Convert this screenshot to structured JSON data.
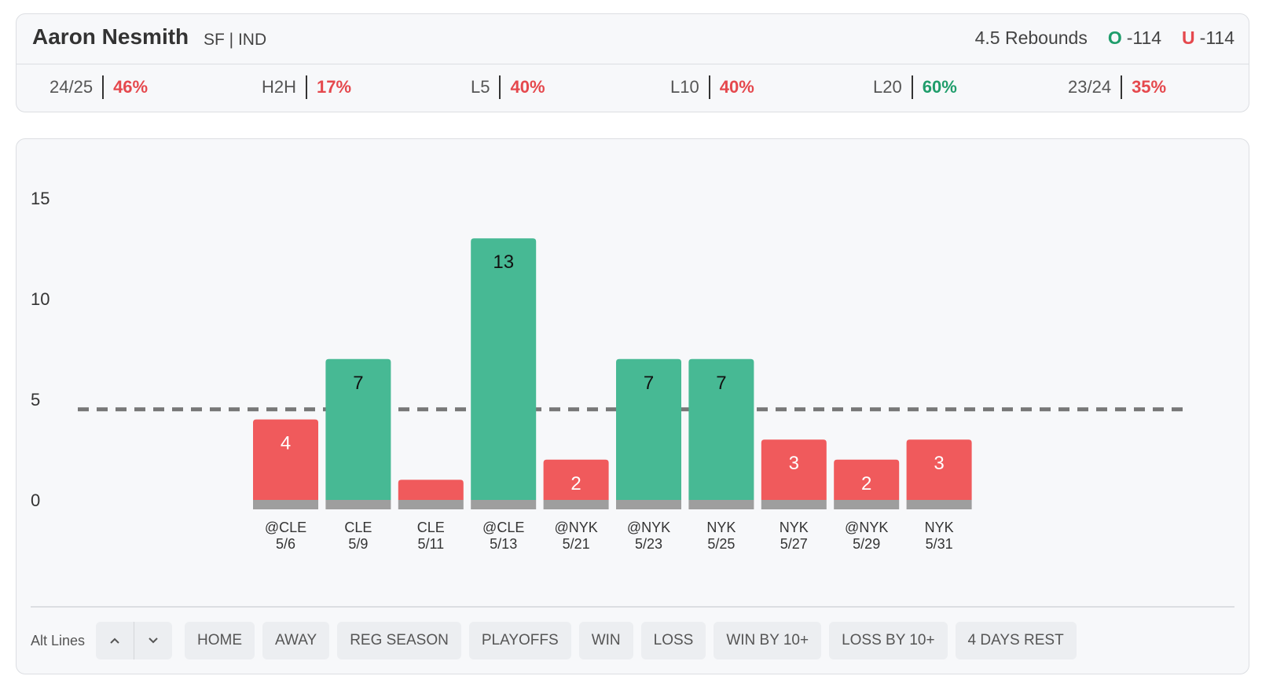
{
  "header": {
    "player_name": "Aaron Nesmith",
    "player_position": "SF | IND",
    "prop": "4.5 Rebounds",
    "over": {
      "letter": "O",
      "odds": "-114"
    },
    "under": {
      "letter": "U",
      "odds": "-114"
    }
  },
  "stats": [
    {
      "label": "24/25",
      "value": "46%",
      "status": "red"
    },
    {
      "label": "H2H",
      "value": "17%",
      "status": "red"
    },
    {
      "label": "L5",
      "value": "40%",
      "status": "red"
    },
    {
      "label": "L10",
      "value": "40%",
      "status": "red"
    },
    {
      "label": "L20",
      "value": "60%",
      "status": "green"
    },
    {
      "label": "23/24",
      "value": "35%",
      "status": "red"
    }
  ],
  "chart_data": {
    "type": "bar",
    "yticks": [
      0,
      5,
      10,
      15
    ],
    "ylim": [
      0,
      15
    ],
    "line": 4.5,
    "categories": [
      {
        "team": "@CLE",
        "date": "5/6"
      },
      {
        "team": "CLE",
        "date": "5/9"
      },
      {
        "team": "CLE",
        "date": "5/11"
      },
      {
        "team": "@CLE",
        "date": "5/13"
      },
      {
        "team": "@NYK",
        "date": "5/21"
      },
      {
        "team": "@NYK",
        "date": "5/23"
      },
      {
        "team": "NYK",
        "date": "5/25"
      },
      {
        "team": "NYK",
        "date": "5/27"
      },
      {
        "team": "@NYK",
        "date": "5/29"
      },
      {
        "team": "NYK",
        "date": "5/31"
      }
    ],
    "values": [
      4,
      7,
      1,
      13,
      2,
      7,
      7,
      3,
      2,
      3
    ],
    "value_labels": [
      "4",
      "7",
      "",
      "13",
      "2",
      "7",
      "7",
      "3",
      "2",
      "3"
    ]
  },
  "colors": {
    "over": "#47b994",
    "under": "#f05a5c",
    "base": "#9e9e9e",
    "line": "#777777"
  },
  "filters": {
    "alt_lines_label": "Alt Lines",
    "up_icon": "chevron-up-icon",
    "down_icon": "chevron-down-icon",
    "chips": [
      "HOME",
      "AWAY",
      "REG SEASON",
      "PLAYOFFS",
      "WIN",
      "LOSS",
      "WIN BY 10+",
      "LOSS BY 10+",
      "4 DAYS REST"
    ]
  }
}
